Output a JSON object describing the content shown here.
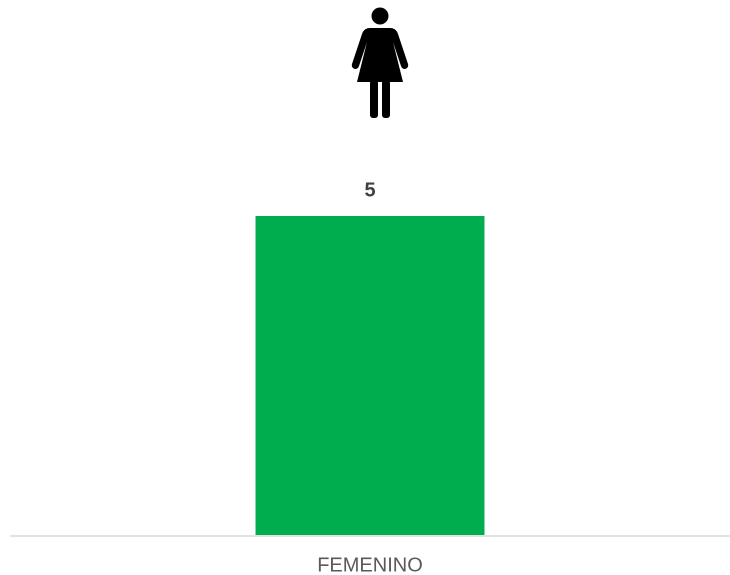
{
  "chart_data": {
    "type": "bar",
    "categories": [
      "FEMENINO"
    ],
    "values": [
      5
    ],
    "color": "#00ad4e"
  }
}
